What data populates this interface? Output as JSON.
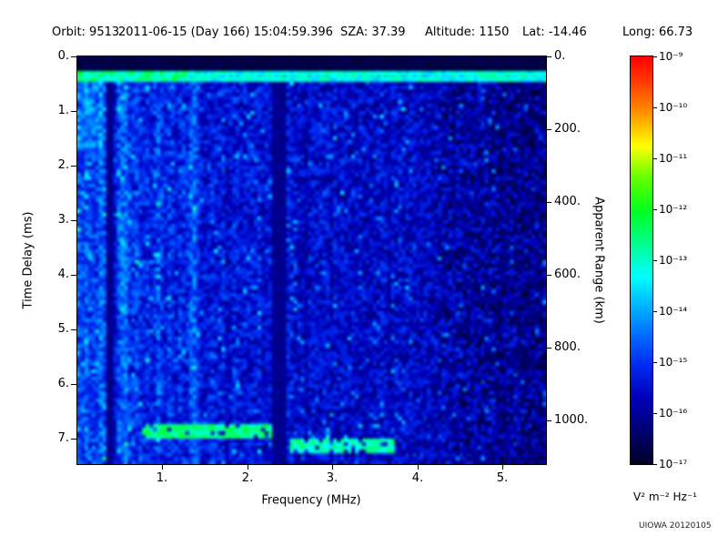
{
  "header": {
    "orbit": "Orbit: 9513",
    "datetime": "2011-06-15 (Day 166) 15:04:59.396",
    "sza": "SZA: 37.39",
    "altitude": "Altitude: 1150",
    "lat": "Lat: -14.46",
    "long": "Long: 66.73"
  },
  "credit": "UIOWA 20120105",
  "chart_data": {
    "type": "heatmap",
    "description": "Radar sounder ionogram spectrogram: signal spectral density vs frequency and time delay",
    "x_axis": {
      "label": "Frequency (MHz)",
      "range": [
        0,
        5.51
      ],
      "tick_values": [
        1,
        2,
        3,
        4,
        5
      ],
      "tick_labels": [
        "1.",
        "2.",
        "3.",
        "4.",
        "5."
      ]
    },
    "y_axis": {
      "label": "Time Delay (ms)",
      "range": [
        0,
        7.47
      ],
      "inverted": true,
      "tick_values": [
        0,
        1,
        2,
        3,
        4,
        5,
        6,
        7
      ],
      "tick_labels": [
        "0.",
        "1.",
        "2.",
        "3.",
        "4.",
        "5.",
        "6.",
        "7."
      ]
    },
    "y2_axis": {
      "label": "Apparent Range (km)",
      "tick_values": [
        0,
        200,
        400,
        600,
        800,
        1000
      ],
      "tick_labels": [
        "0.",
        "200.",
        "400.",
        "600.",
        "800.",
        "1000."
      ]
    },
    "colorbar": {
      "unit_label": "V² m⁻² Hz⁻¹",
      "scale": "log",
      "range_exponents": [
        -17,
        -9
      ],
      "tick_labels": [
        "10⁻⁹",
        "10⁻¹⁰",
        "10⁻¹¹",
        "10⁻¹²",
        "10⁻¹³",
        "10⁻¹⁴",
        "10⁻¹⁵",
        "10⁻¹⁶",
        "10⁻¹⁷"
      ],
      "stops": [
        [
          0.0,
          "#000028"
        ],
        [
          0.08,
          "#000070"
        ],
        [
          0.16,
          "#0000B8"
        ],
        [
          0.24,
          "#0028F0"
        ],
        [
          0.32,
          "#0070FF"
        ],
        [
          0.4,
          "#00C0FF"
        ],
        [
          0.46,
          "#00FFFF"
        ],
        [
          0.54,
          "#00FF90"
        ],
        [
          0.62,
          "#00FF20"
        ],
        [
          0.7,
          "#60FF00"
        ],
        [
          0.78,
          "#FFFF00"
        ],
        [
          0.87,
          "#FF8800"
        ],
        [
          0.94,
          "#FF3800"
        ],
        [
          1.0,
          "#FF0000"
        ]
      ]
    },
    "features": {
      "seed": 20120105,
      "grid": {
        "cols": 130,
        "rows": 112
      },
      "background": {
        "base": 0.17,
        "amp": 0.13,
        "falloff": 1.4,
        "noise": 0.17,
        "speckle_chance": 0.08,
        "speckle_boost": 0.2
      },
      "top_black_band": {
        "t_max_ms": 0.27
      },
      "plasma_line": {
        "t_min_ms": 0.27,
        "t_max_ms": 0.48,
        "level": 0.47,
        "left_green_boost": 0.14
      },
      "bright_vertical_lines_mhz": [
        [
          0.5,
          0.6
        ],
        [
          1.3,
          1.42
        ]
      ],
      "dark_vertical_lines_mhz": [
        [
          0.32,
          0.44
        ],
        [
          2.3,
          2.45
        ]
      ],
      "dark_right_region": {
        "f_min_mhz": 4.25,
        "drop": 0.045,
        "black_patch_chance": 0.17
      },
      "echo_trace": [
        {
          "f_min": 0.78,
          "f_max": 2.3,
          "t_min": 6.74,
          "t_max": 6.97,
          "level": 0.55
        },
        {
          "f_min": 2.5,
          "f_max": 3.72,
          "t_min": 7.03,
          "t_max": 7.26,
          "level": 0.52
        }
      ]
    }
  }
}
